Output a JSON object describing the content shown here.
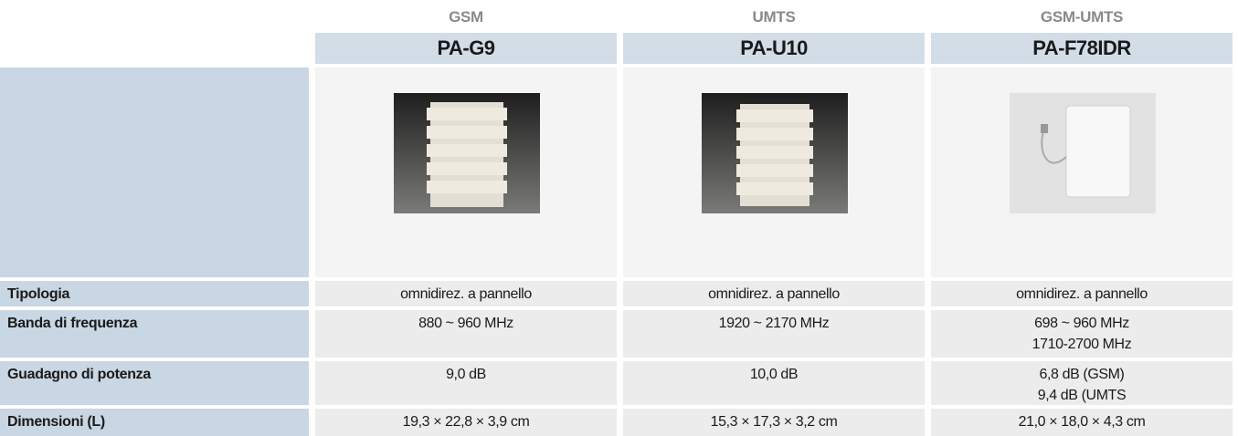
{
  "table": {
    "columns": [
      {
        "category": "GSM",
        "model": "PA-G9"
      },
      {
        "category": "UMTS",
        "model": "PA-U10"
      },
      {
        "category": "GSM-UMTS",
        "model": "PA-F78IDR"
      }
    ],
    "rows": [
      {
        "label": "Tipologia",
        "values": [
          [
            "omnidirez. a pannello"
          ],
          [
            "omnidirez. a pannello"
          ],
          [
            "omnidirez. a pannello"
          ]
        ]
      },
      {
        "label": "Banda di frequenza",
        "values": [
          [
            "880 ~ 960 MHz"
          ],
          [
            "1920 ~ 2170 MHz"
          ],
          [
            "698 ~ 960 MHz",
            "1710-2700 MHz"
          ]
        ]
      },
      {
        "label": "Guadagno di potenza",
        "values": [
          [
            "9,0 dB"
          ],
          [
            "10,0 dB"
          ],
          [
            "6,8 dB (GSM)",
            "9,4 dB (UMTS"
          ]
        ]
      },
      {
        "label": "Dimensioni (L)",
        "values": [
          [
            "19,3 × 22,8 × 3,9 cm"
          ],
          [
            "15,3 × 17,3 × 3,2 cm"
          ],
          [
            "21,0 × 18,0 × 4,3 cm"
          ]
        ]
      }
    ]
  }
}
